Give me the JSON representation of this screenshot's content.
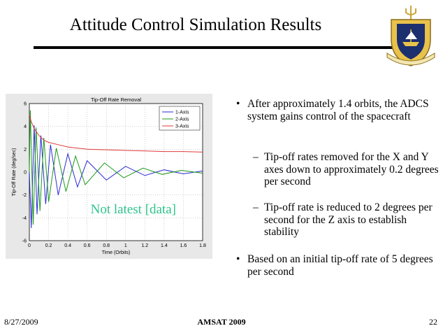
{
  "slide": {
    "title": "Attitude Control Simulation Results",
    "footer": {
      "date": "8/27/2009",
      "center": "AMSAT 2009",
      "page": "22"
    },
    "bullets": [
      {
        "text": "After approximately 1.4 orbits, the ADCS system gains control of the spacecraft"
      },
      {
        "text": "Tip-off rates removed for the X and Y axes down to approximately 0.2 degrees per second"
      },
      {
        "text": "Tip-off rate is reduced to 2 degrees per second for the Z axis to establish stability"
      },
      {
        "text": "Based on an initial tip-off rate of 5 degrees per second"
      }
    ],
    "bullet_glyph": "•",
    "dash_glyph": "–",
    "crest_icon": "naval-academy-crest-icon",
    "colors": {
      "axis1": "#2b2bd6",
      "axis2": "#1a9a1a",
      "axis3": "#e03a3a",
      "watermark": "#2ec48a"
    }
  },
  "chart_data": {
    "type": "line",
    "title": "Tip-Off Rate Removal",
    "xlabel": "Time (Orbits)",
    "ylabel": "Tip-Off Rate (deg/sec)",
    "xlim": [
      0,
      1.8
    ],
    "ylim": [
      -6,
      6
    ],
    "xticks": [
      "0",
      "0.2",
      "0.4",
      "0.6",
      "0.8",
      "1",
      "1.2",
      "1.4",
      "1.6",
      "1.8"
    ],
    "yticks": [
      "-6",
      "-4",
      "-2",
      "0",
      "2",
      "4",
      "6"
    ],
    "grid": true,
    "legend_position": "top-right",
    "annotation": "Not latest [data]",
    "series": [
      {
        "name": "1-Axis",
        "color": "#2b2bd6",
        "x": [
          0,
          0.02,
          0.05,
          0.08,
          0.12,
          0.17,
          0.22,
          0.3,
          0.4,
          0.5,
          0.6,
          0.8,
          1.0,
          1.2,
          1.4,
          1.6,
          1.8
        ],
        "y": [
          0,
          -4.9,
          4.1,
          -3.7,
          3.2,
          -2.8,
          2.4,
          -2.0,
          1.6,
          -1.3,
          1.0,
          -0.7,
          0.5,
          -0.3,
          0.2,
          -0.15,
          0.1
        ]
      },
      {
        "name": "2-Axis",
        "color": "#1a9a1a",
        "x": [
          0,
          0.01,
          0.04,
          0.07,
          0.11,
          0.15,
          0.2,
          0.28,
          0.38,
          0.48,
          0.58,
          0.78,
          0.98,
          1.18,
          1.38,
          1.58,
          1.8
        ],
        "y": [
          0,
          5.4,
          -4.6,
          3.9,
          -3.4,
          3.0,
          -2.6,
          2.1,
          -1.7,
          1.4,
          -1.1,
          0.8,
          -0.5,
          0.35,
          -0.2,
          0.15,
          -0.1
        ]
      },
      {
        "name": "3-Axis",
        "color": "#e03a3a",
        "x": [
          0,
          0.02,
          0.05,
          0.1,
          0.15,
          0.2,
          0.3,
          0.4,
          0.5,
          0.6,
          0.8,
          1.0,
          1.2,
          1.4,
          1.6,
          1.8
        ],
        "y": [
          5.0,
          4.4,
          3.8,
          3.2,
          2.8,
          2.6,
          2.4,
          2.2,
          2.1,
          2.0,
          1.95,
          1.9,
          1.85,
          1.8,
          1.8,
          1.75
        ]
      }
    ]
  }
}
